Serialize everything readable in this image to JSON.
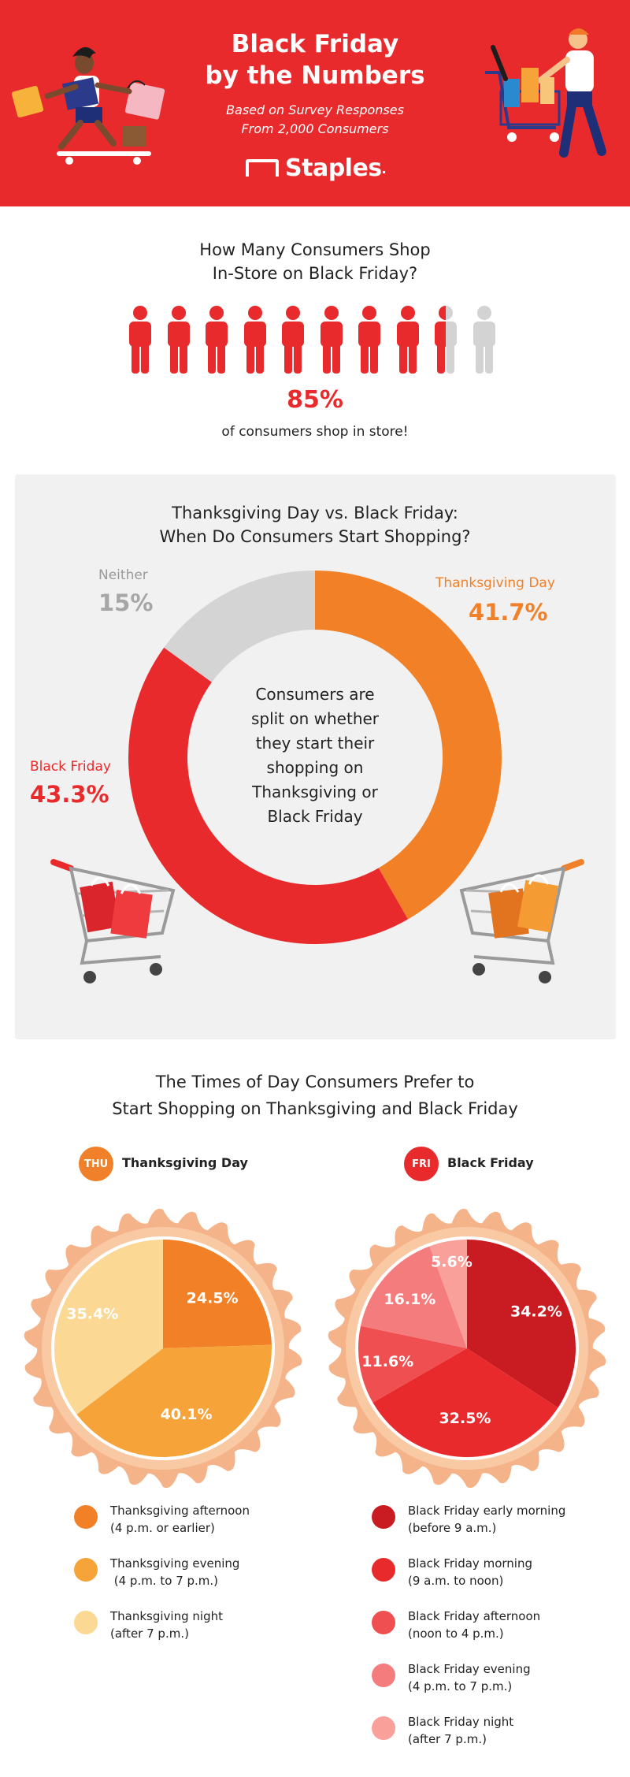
{
  "header": {
    "title_line1": "Black Friday",
    "title_line2": "by the Numbers",
    "subtitle_line1": "Based on Survey Responses",
    "subtitle_line2": "From 2,000 Consumers",
    "brand": "Staples",
    "brand_suffix": ".",
    "bg_color": "#e92a2c"
  },
  "instore": {
    "title_line1": "How Many Consumers Shop",
    "title_line2": "In-Store on Black Friday?",
    "percent_label": "85%",
    "caption": "of consumers shop in store!",
    "icon": "person-icon",
    "people_total": 10,
    "people_filled": 8.5
  },
  "start": {
    "title_line1": "Thanksgiving Day vs. Black Friday:",
    "title_line2": "When Do Consumers Start Shopping?",
    "center_text": [
      "Consumers are",
      "split on whether",
      "they start their",
      "shopping on",
      "Thanksgiving or",
      "Black Friday"
    ],
    "labels": {
      "neither": {
        "name": "Neither",
        "value": "15%"
      },
      "thanksgiving": {
        "name": "Thanksgiving Day",
        "value": "41.7%"
      },
      "black_friday": {
        "name": "Black Friday",
        "value": "43.3%"
      }
    }
  },
  "times": {
    "title_line1": "The Times of Day Consumers Prefer to",
    "title_line2": "Start Shopping on Thanksgiving and Black Friday",
    "thu": {
      "badge": "THU",
      "label": "Thanksgiving Day",
      "color": "#f0812a"
    },
    "fri": {
      "badge": "FRI",
      "label": "Black Friday",
      "color": "#e92a2c"
    },
    "thu_legend": [
      {
        "text": "Thanksgiving afternoon\n(4 p.m. or earlier)",
        "color": "#f28026"
      },
      {
        "text": "Thanksgiving evening\n (4 p.m. to 7 p.m.)",
        "color": "#f6a43a"
      },
      {
        "text": "Thanksgiving night\n(after 7 p.m.)",
        "color": "#fbd894"
      }
    ],
    "fri_legend": [
      {
        "text": "Black Friday early morning\n(before 9 a.m.)",
        "color": "#c81b22"
      },
      {
        "text": "Black Friday morning\n(9 a.m. to noon)",
        "color": "#e92a2c"
      },
      {
        "text": "Black Friday afternoon\n(noon to 4 p.m.)",
        "color": "#ef4f51"
      },
      {
        "text": "Black Friday evening\n(4 p.m. to 7 p.m.)",
        "color": "#f47c7d"
      },
      {
        "text": "Black Friday night\n(after 7 p.m.)",
        "color": "#f9a09b"
      }
    ]
  },
  "chart_data": [
    {
      "type": "bar",
      "categories": [
        "Shop in store"
      ],
      "values": [
        85
      ],
      "title": "How Many Consumers Shop In-Store on Black Friday?",
      "unit": "%"
    },
    {
      "type": "pie",
      "donut": true,
      "title": "Thanksgiving Day vs. Black Friday: When Do Consumers Start Shopping?",
      "categories": [
        "Thanksgiving Day",
        "Black Friday",
        "Neither"
      ],
      "values": [
        41.7,
        43.3,
        15
      ],
      "colors": [
        "#f28026",
        "#e92a2c",
        "#d4d4d4"
      ],
      "unit": "%"
    },
    {
      "type": "pie",
      "title": "Thanksgiving Day",
      "categories": [
        "Thanksgiving afternoon (4 p.m. or earlier)",
        "Thanksgiving evening (4 p.m. to 7 p.m.)",
        "Thanksgiving night (after 7 p.m.)"
      ],
      "values": [
        24.5,
        40.1,
        35.4
      ],
      "labels": [
        "24.5%",
        "40.1%",
        "35.4%"
      ],
      "colors": [
        "#f28026",
        "#f6a43a",
        "#fbd894"
      ],
      "unit": "%"
    },
    {
      "type": "pie",
      "title": "Black Friday",
      "categories": [
        "Black Friday early morning (before 9 a.m.)",
        "Black Friday morning (9 a.m. to noon)",
        "Black Friday afternoon (noon to 4 p.m.)",
        "Black Friday evening (4 p.m. to 7 p.m.)",
        "Black Friday night (after 7 p.m.)"
      ],
      "values": [
        34.2,
        32.5,
        11.6,
        16.1,
        5.6
      ],
      "labels": [
        "34.2%",
        "32.5%",
        "11.6%",
        "16.1%",
        "5.6%"
      ],
      "colors": [
        "#c81b22",
        "#e92a2c",
        "#ef4f51",
        "#f47c7d",
        "#f9a09b"
      ],
      "unit": "%"
    }
  ]
}
